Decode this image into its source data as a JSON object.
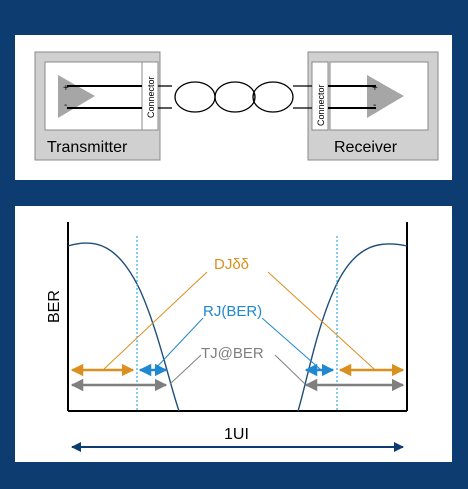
{
  "top_diagram": {
    "transmitter_label": "Transmitter",
    "receiver_label": "Receiver",
    "connector_left_label": "Connector",
    "connector_right_label": "Connector",
    "tx_plus": "+",
    "tx_minus": "-",
    "rx_plus": "+",
    "rx_minus": "-"
  },
  "bathtub_diagram": {
    "y_axis_label": "BER",
    "x_span_label": "1UI",
    "dj_label": "DJδδ",
    "rj_label": "RJ(BER)",
    "tj_label": "TJ@BER",
    "colors": {
      "dj": "#d9901e",
      "rj": "#1f88d0",
      "tj": "#7f7f7f",
      "curve": "#1f4e79",
      "frame": "#0d3c70"
    }
  }
}
